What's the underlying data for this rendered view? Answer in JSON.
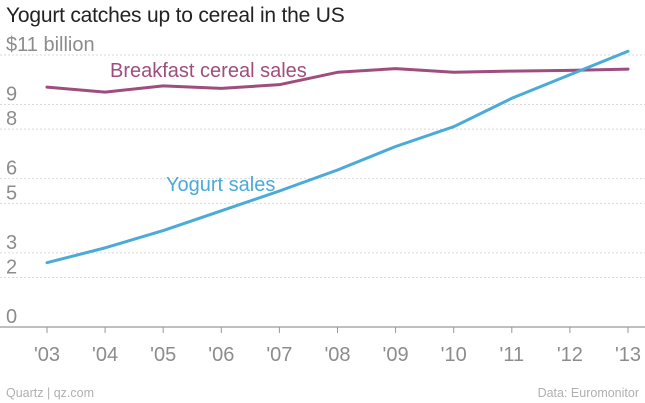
{
  "title": "Yogurt catches up to cereal in the US",
  "footer": {
    "source_left": "Quartz | qz.com",
    "source_right": "Data: Euromonitor"
  },
  "colors": {
    "cereal": "#9e4d7e",
    "yogurt": "#4aaad8",
    "grid": "#d9d9d9",
    "axis_text": "#8c8c8c",
    "zero_line": "#999999"
  },
  "chart_data": {
    "type": "line",
    "title": "Yogurt catches up to cereal in the US",
    "ylabel": "$11 billion",
    "xlabel": "",
    "ylim": [
      0,
      11
    ],
    "y_ticks": [
      {
        "value": 0,
        "label": "0"
      },
      {
        "value": 2,
        "label": "2"
      },
      {
        "value": 3,
        "label": "3"
      },
      {
        "value": 5,
        "label": "5"
      },
      {
        "value": 6,
        "label": "6"
      },
      {
        "value": 8,
        "label": "8"
      },
      {
        "value": 9,
        "label": "9"
      },
      {
        "value": 11,
        "label": "$11 billion"
      }
    ],
    "categories": [
      "'03",
      "'04",
      "'05",
      "'06",
      "'07",
      "'08",
      "'09",
      "'10",
      "'11",
      "'12",
      "'13"
    ],
    "series": [
      {
        "name": "Breakfast cereal sales",
        "label": "Breakfast cereal sales",
        "color_key": "cereal",
        "values": [
          9.7,
          9.5,
          9.75,
          9.65,
          9.8,
          10.3,
          10.45,
          10.3,
          10.35,
          10.38,
          10.43
        ]
      },
      {
        "name": "Yogurt sales",
        "label": "Yogurt sales",
        "color_key": "yogurt",
        "values": [
          2.6,
          3.2,
          3.9,
          4.7,
          5.5,
          6.35,
          7.3,
          8.1,
          9.25,
          10.2,
          11.15
        ]
      }
    ]
  }
}
